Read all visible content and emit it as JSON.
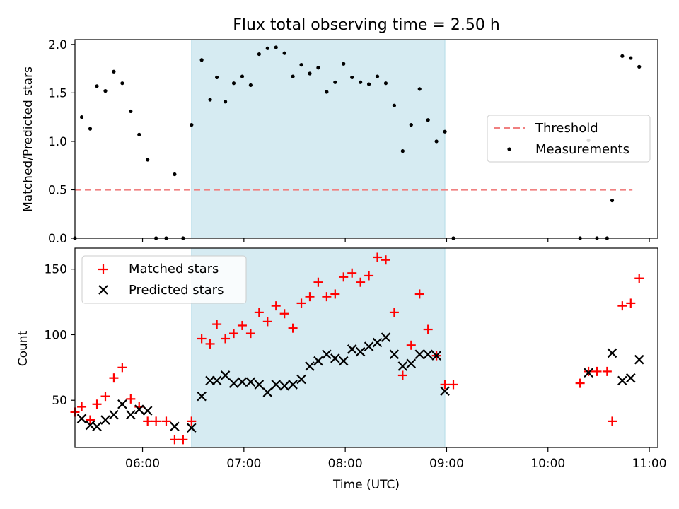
{
  "chart_data": {
    "title": "Flux total observing time = 2.50 h",
    "xlabel": "Time (UTC)",
    "x_ticks": [
      "06:00",
      "07:00",
      "08:00",
      "09:00",
      "10:00",
      "11:00"
    ],
    "x_range": [
      "05:20",
      "11:05"
    ],
    "shaded_interval": {
      "start": "06:29",
      "end": "08:59",
      "color": "#add8e6"
    },
    "panels": [
      {
        "type": "scatter",
        "ylabel": "Matched/Predicted stars",
        "ylim": [
          0,
          2.05
        ],
        "y_ticks": [
          "0.0",
          "0.5",
          "1.0",
          "1.5",
          "2.0"
        ],
        "legend": {
          "position": "center-right",
          "entries": [
            "Threshold",
            "Measurements"
          ]
        },
        "threshold": {
          "name": "Threshold",
          "value": 0.5,
          "x_start": "05:20",
          "x_end": "10:50",
          "color": "#f08080",
          "style": "dashed"
        },
        "series": [
          {
            "name": "Measurements",
            "marker": "dot",
            "color": "#000000",
            "points": [
              [
                "05:20",
                0.0
              ],
              [
                "05:24",
                1.25
              ],
              [
                "05:29",
                1.13
              ],
              [
                "05:33",
                1.57
              ],
              [
                "05:38",
                1.52
              ],
              [
                "05:43",
                1.72
              ],
              [
                "05:48",
                1.6
              ],
              [
                "05:53",
                1.31
              ],
              [
                "05:58",
                1.07
              ],
              [
                "06:03",
                0.81
              ],
              [
                "06:08",
                0.0
              ],
              [
                "06:14",
                0.0
              ],
              [
                "06:19",
                0.66
              ],
              [
                "06:24",
                0.0
              ],
              [
                "06:29",
                1.17
              ],
              [
                "06:35",
                1.84
              ],
              [
                "06:40",
                1.43
              ],
              [
                "06:44",
                1.66
              ],
              [
                "06:49",
                1.41
              ],
              [
                "06:54",
                1.6
              ],
              [
                "06:59",
                1.67
              ],
              [
                "07:04",
                1.58
              ],
              [
                "07:09",
                1.9
              ],
              [
                "07:14",
                1.96
              ],
              [
                "07:19",
                1.97
              ],
              [
                "07:24",
                1.91
              ],
              [
                "07:29",
                1.67
              ],
              [
                "07:34",
                1.79
              ],
              [
                "07:39",
                1.7
              ],
              [
                "07:44",
                1.76
              ],
              [
                "07:49",
                1.51
              ],
              [
                "07:54",
                1.61
              ],
              [
                "07:59",
                1.8
              ],
              [
                "08:04",
                1.66
              ],
              [
                "08:09",
                1.61
              ],
              [
                "08:14",
                1.59
              ],
              [
                "08:19",
                1.67
              ],
              [
                "08:24",
                1.6
              ],
              [
                "08:29",
                1.37
              ],
              [
                "08:34",
                0.9
              ],
              [
                "08:39",
                1.17
              ],
              [
                "08:44",
                1.54
              ],
              [
                "08:49",
                1.22
              ],
              [
                "08:54",
                1.0
              ],
              [
                "08:59",
                1.1
              ],
              [
                "09:04",
                0.0
              ],
              [
                "10:19",
                0.0
              ],
              [
                "10:24",
                1.01
              ],
              [
                "10:29",
                0.0
              ],
              [
                "10:35",
                0.0
              ],
              [
                "10:38",
                0.39
              ],
              [
                "10:44",
                1.88
              ],
              [
                "10:49",
                1.86
              ],
              [
                "10:54",
                1.77
              ]
            ]
          }
        ]
      },
      {
        "type": "scatter",
        "ylabel": "Count",
        "ylim": [
          14,
          166
        ],
        "y_ticks": [
          "50",
          "100",
          "150"
        ],
        "legend": {
          "position": "upper-left",
          "entries": [
            "Matched stars",
            "Predicted stars"
          ]
        },
        "series": [
          {
            "name": "Matched stars",
            "marker": "plus",
            "color": "#ff0000",
            "points": [
              [
                "05:20",
                41
              ],
              [
                "05:24",
                45
              ],
              [
                "05:29",
                35
              ],
              [
                "05:33",
                47
              ],
              [
                "05:38",
                53
              ],
              [
                "05:43",
                67
              ],
              [
                "05:48",
                75
              ],
              [
                "05:53",
                51
              ],
              [
                "05:58",
                45
              ],
              [
                "06:03",
                34
              ],
              [
                "06:08",
                34
              ],
              [
                "06:14",
                34
              ],
              [
                "06:19",
                20
              ],
              [
                "06:24",
                20
              ],
              [
                "06:29",
                34
              ],
              [
                "06:35",
                97
              ],
              [
                "06:40",
                93
              ],
              [
                "06:44",
                108
              ],
              [
                "06:49",
                97
              ],
              [
                "06:54",
                101
              ],
              [
                "06:59",
                107
              ],
              [
                "07:04",
                101
              ],
              [
                "07:09",
                117
              ],
              [
                "07:14",
                110
              ],
              [
                "07:19",
                122
              ],
              [
                "07:24",
                116
              ],
              [
                "07:29",
                105
              ],
              [
                "07:34",
                124
              ],
              [
                "07:39",
                129
              ],
              [
                "07:44",
                140
              ],
              [
                "07:49",
                129
              ],
              [
                "07:54",
                131
              ],
              [
                "07:59",
                144
              ],
              [
                "08:04",
                147
              ],
              [
                "08:09",
                140
              ],
              [
                "08:14",
                145
              ],
              [
                "08:19",
                159
              ],
              [
                "08:24",
                157
              ],
              [
                "08:29",
                117
              ],
              [
                "08:34",
                69
              ],
              [
                "08:39",
                92
              ],
              [
                "08:44",
                131
              ],
              [
                "08:49",
                104
              ],
              [
                "08:54",
                84
              ],
              [
                "08:59",
                62
              ],
              [
                "09:04",
                62
              ],
              [
                "10:19",
                63
              ],
              [
                "10:24",
                72
              ],
              [
                "10:29",
                72
              ],
              [
                "10:35",
                72
              ],
              [
                "10:38",
                34
              ],
              [
                "10:44",
                122
              ],
              [
                "10:49",
                124
              ],
              [
                "10:54",
                143
              ]
            ]
          },
          {
            "name": "Predicted stars",
            "marker": "x",
            "color": "#000000",
            "points": [
              [
                "05:24",
                36
              ],
              [
                "05:29",
                31
              ],
              [
                "05:33",
                30
              ],
              [
                "05:38",
                35
              ],
              [
                "05:43",
                39
              ],
              [
                "05:48",
                47
              ],
              [
                "05:53",
                39
              ],
              [
                "05:58",
                43
              ],
              [
                "06:03",
                42
              ],
              [
                "06:19",
                30
              ],
              [
                "06:29",
                29
              ],
              [
                "06:35",
                53
              ],
              [
                "06:40",
                65
              ],
              [
                "06:44",
                65
              ],
              [
                "06:49",
                69
              ],
              [
                "06:54",
                63
              ],
              [
                "06:59",
                64
              ],
              [
                "07:04",
                64
              ],
              [
                "07:09",
                62
              ],
              [
                "07:14",
                56
              ],
              [
                "07:19",
                62
              ],
              [
                "07:24",
                61
              ],
              [
                "07:29",
                62
              ],
              [
                "07:34",
                66
              ],
              [
                "07:39",
                76
              ],
              [
                "07:44",
                80
              ],
              [
                "07:49",
                85
              ],
              [
                "07:54",
                82
              ],
              [
                "07:59",
                80
              ],
              [
                "08:04",
                89
              ],
              [
                "08:09",
                87
              ],
              [
                "08:14",
                91
              ],
              [
                "08:19",
                94
              ],
              [
                "08:24",
                98
              ],
              [
                "08:29",
                85
              ],
              [
                "08:34",
                76
              ],
              [
                "08:39",
                78
              ],
              [
                "08:44",
                85
              ],
              [
                "08:49",
                85
              ],
              [
                "08:54",
                84
              ],
              [
                "08:59",
                57
              ],
              [
                "10:24",
                71
              ],
              [
                "10:38",
                86
              ],
              [
                "10:44",
                65
              ],
              [
                "10:49",
                67
              ],
              [
                "10:54",
                81
              ]
            ]
          }
        ]
      }
    ]
  }
}
